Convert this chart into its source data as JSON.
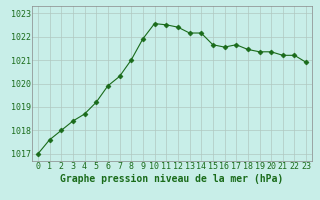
{
  "x": [
    0,
    1,
    2,
    3,
    4,
    5,
    6,
    7,
    8,
    9,
    10,
    11,
    12,
    13,
    14,
    15,
    16,
    17,
    18,
    19,
    20,
    21,
    22,
    23
  ],
  "y": [
    1017.0,
    1017.6,
    1018.0,
    1018.4,
    1018.7,
    1019.2,
    1019.9,
    1020.3,
    1021.0,
    1021.9,
    1022.55,
    1022.5,
    1022.4,
    1022.15,
    1022.15,
    1021.65,
    1021.55,
    1021.65,
    1021.45,
    1021.35,
    1021.35,
    1021.2,
    1021.2,
    1020.9
  ],
  "line_color": "#1a6b1a",
  "bg_color": "#c8eee8",
  "grid_color": "#b0c8c0",
  "xlabel": "Graphe pression niveau de la mer (hPa)",
  "xlabel_color": "#1a6b1a",
  "ylabel_ticks": [
    1017,
    1018,
    1019,
    1020,
    1021,
    1022,
    1023
  ],
  "xlim": [
    -0.5,
    23.5
  ],
  "ylim": [
    1016.7,
    1023.3
  ],
  "marker": "D",
  "markersize": 2.5,
  "tick_fontsize": 6.0,
  "xlabel_fontsize": 7.0
}
